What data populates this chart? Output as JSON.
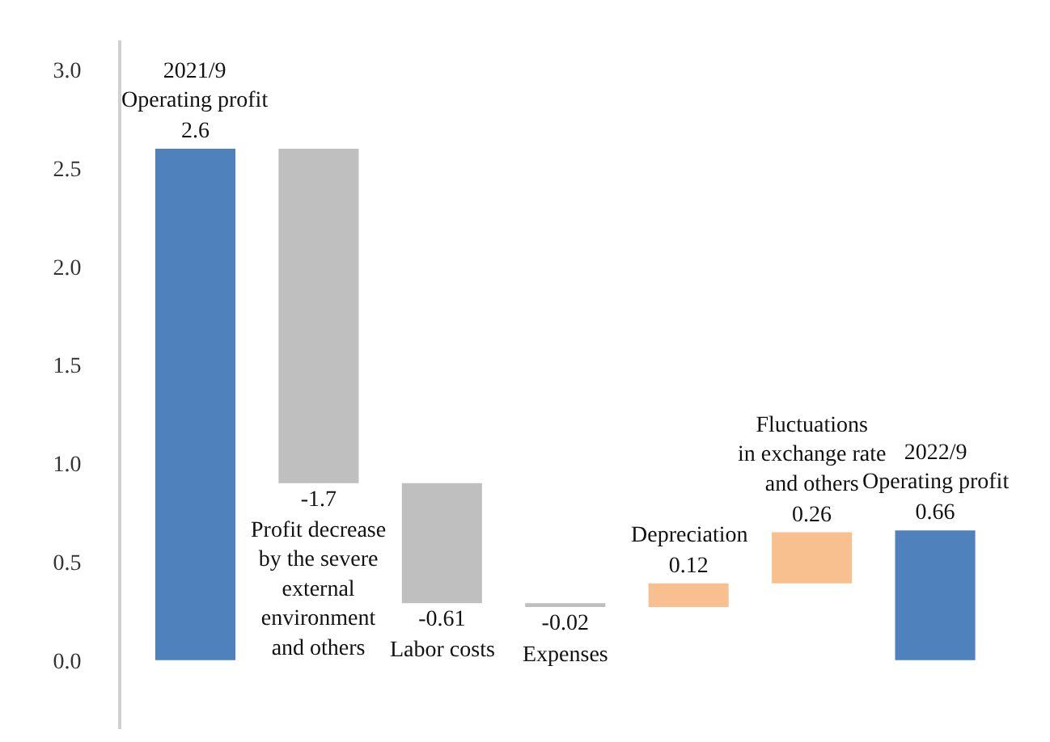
{
  "chart_data": {
    "type": "bar",
    "categories": [
      "2021/9\nOperating profit",
      "Profit decrease\nby the severe\nexternal\nenvironment\nand others",
      "Labor costs",
      "Expenses",
      "Depreciation",
      "Fluctuations\nin exchange rate\nand others",
      "2022/9\nOperating profit"
    ],
    "values": [
      2.6,
      -1.7,
      -0.61,
      -0.02,
      0.12,
      0.26,
      0.66
    ],
    "base": [
      0,
      2.6,
      0.9,
      0.29,
      0.27,
      0.39,
      0
    ],
    "colors": [
      "#4f81bd",
      "#bfbfbf",
      "#bfbfbf",
      "#bfbfbf",
      "#f8c08f",
      "#f8c08f",
      "#4f81bd"
    ],
    "ylim": [
      -0.35,
      3.15
    ],
    "yticks": [
      {
        "value": 0,
        "label": "0.0"
      },
      {
        "value": 0.5,
        "label": "0.5"
      },
      {
        "value": 1,
        "label": "1.0"
      },
      {
        "value": 1.5,
        "label": "1.5"
      },
      {
        "value": 2,
        "label": "2.0"
      },
      {
        "value": 2.5,
        "label": "2.5"
      },
      {
        "value": 3,
        "label": "3.0"
      }
    ],
    "tick_labels": "y",
    "legend": false,
    "data_labels": true
  }
}
